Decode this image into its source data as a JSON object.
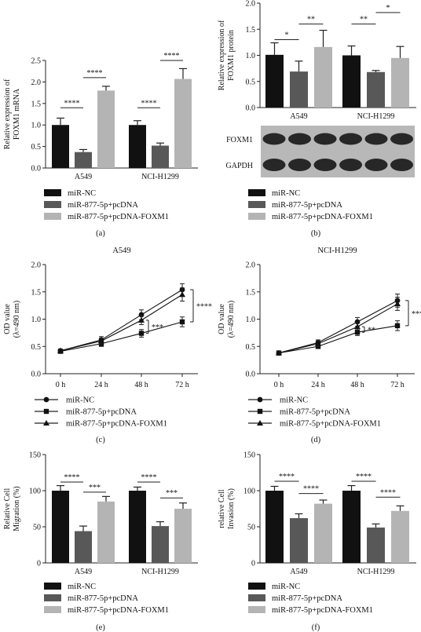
{
  "colors": {
    "nc": "#111111",
    "pc": "#585858",
    "foxm1": "#b4b4b4",
    "axis": "#222222",
    "blot_bg": "#b8b8b8",
    "band": "#1a1a1a"
  },
  "legend": {
    "nc": "miR-NC",
    "pc": "miR-877-5p+pcDNA",
    "foxm1": "miR-877-5p+pcDNA-FOXM1"
  },
  "blot": {
    "labels": [
      "FOXM1",
      "GAPDH"
    ]
  },
  "chart_data": [
    {
      "panel": "a",
      "type": "bar",
      "caption": "(a)",
      "ylabel": "Relative expression of FOXM1 mRNA",
      "ylim": [
        0,
        2.5
      ],
      "yticks": [
        "0.0",
        "0.5",
        "1.0",
        "1.5",
        "2.0",
        "2.5"
      ],
      "categories": [
        "A549",
        "NCI-H1299"
      ],
      "series": [
        {
          "name": "miR-NC",
          "values": [
            1.0,
            1.0
          ],
          "err": [
            0.16,
            0.1
          ]
        },
        {
          "name": "miR-877-5p+pcDNA",
          "values": [
            0.37,
            0.52
          ],
          "err": [
            0.06,
            0.06
          ]
        },
        {
          "name": "miR-877-5p+pcDNA-FOXM1",
          "values": [
            1.8,
            2.07
          ],
          "err": [
            0.1,
            0.24
          ]
        }
      ],
      "sig": [
        {
          "cat": 0,
          "from": 0,
          "to": 1,
          "level": 1.4,
          "label": "****"
        },
        {
          "cat": 0,
          "from": 1,
          "to": 2,
          "level": 2.1,
          "label": "****"
        },
        {
          "cat": 1,
          "from": 0,
          "to": 1,
          "level": 1.4,
          "label": "****"
        },
        {
          "cat": 1,
          "from": 1,
          "to": 2,
          "level": 2.5,
          "label": "****"
        }
      ]
    },
    {
      "panel": "b",
      "type": "bar",
      "caption": "(b)",
      "ylabel": "Relative expression of FOXM1 protein",
      "ylim": [
        0,
        2.0
      ],
      "yticks": [
        "0.0",
        "0.5",
        "1.0",
        "1.5",
        "2.0"
      ],
      "categories": [
        "A549",
        "NCI-H1299"
      ],
      "series": [
        {
          "name": "miR-NC",
          "values": [
            1.01,
            1.0
          ],
          "err": [
            0.23,
            0.18
          ]
        },
        {
          "name": "miR-877-5p+pcDNA",
          "values": [
            0.69,
            0.68
          ],
          "err": [
            0.2,
            0.03
          ]
        },
        {
          "name": "miR-877-5p+pcDNA-FOXM1",
          "values": [
            1.16,
            0.95
          ],
          "err": [
            0.32,
            0.22
          ]
        }
      ],
      "sig": [
        {
          "cat": 0,
          "from": 0,
          "to": 1,
          "level": 1.3,
          "label": "*"
        },
        {
          "cat": 0,
          "from": 1,
          "to": 2,
          "level": 1.6,
          "label": "**"
        },
        {
          "cat": 1,
          "from": 0,
          "to": 1,
          "level": 1.6,
          "label": "**"
        },
        {
          "cat": 1,
          "from": 1,
          "to": 2,
          "level": 1.82,
          "label": "*"
        }
      ]
    },
    {
      "panel": "c",
      "type": "line",
      "caption": "(c)",
      "title": "A549",
      "ylabel": "OD value (λ=490 nm)",
      "ylim": [
        0,
        2.0
      ],
      "yticks": [
        "0.0",
        "0.5",
        "1.0",
        "1.5",
        "2.0"
      ],
      "x": [
        "0 h",
        "24 h",
        "48 h",
        "72 h"
      ],
      "series": [
        {
          "name": "miR-NC",
          "marker": "circle",
          "values": [
            0.42,
            0.62,
            1.08,
            1.54
          ],
          "err": [
            0.03,
            0.06,
            0.09,
            0.11
          ]
        },
        {
          "name": "miR-877-5p+pcDNA",
          "marker": "square",
          "values": [
            0.41,
            0.55,
            0.74,
            0.95
          ],
          "err": [
            0.03,
            0.05,
            0.07,
            0.09
          ]
        },
        {
          "name": "miR-877-5p+pcDNA-FOXM1",
          "marker": "triangle",
          "values": [
            0.42,
            0.6,
            0.98,
            1.45
          ],
          "err": [
            0.03,
            0.05,
            0.08,
            0.12
          ]
        }
      ],
      "sig": [
        {
          "kind": "pts",
          "x": 2,
          "y1": 0.74,
          "y2": 0.98,
          "label": "***"
        },
        {
          "kind": "end",
          "y1": 0.95,
          "y2": 1.54,
          "label": "****"
        }
      ]
    },
    {
      "panel": "d",
      "type": "line",
      "caption": "(d)",
      "title": "NCI-H1299",
      "ylabel": "OD value (λ=490 nm)",
      "ylim": [
        0,
        2.0
      ],
      "yticks": [
        "0.0",
        "0.5",
        "1.0",
        "1.5",
        "2.0"
      ],
      "x": [
        "0 h",
        "24 h",
        "48 h",
        "72 h"
      ],
      "series": [
        {
          "name": "miR-NC",
          "marker": "circle",
          "values": [
            0.38,
            0.57,
            0.95,
            1.34
          ],
          "err": [
            0.02,
            0.05,
            0.08,
            0.12
          ]
        },
        {
          "name": "miR-877-5p+pcDNA",
          "marker": "square",
          "values": [
            0.38,
            0.5,
            0.76,
            0.88
          ],
          "err": [
            0.02,
            0.04,
            0.06,
            0.09
          ]
        },
        {
          "name": "miR-877-5p+pcDNA-FOXM1",
          "marker": "triangle",
          "values": [
            0.38,
            0.55,
            0.86,
            1.28
          ],
          "err": [
            0.02,
            0.05,
            0.07,
            0.12
          ]
        }
      ],
      "sig": [
        {
          "kind": "pts",
          "x": 2,
          "y1": 0.76,
          "y2": 0.86,
          "label": "**"
        },
        {
          "kind": "end",
          "y1": 0.88,
          "y2": 1.34,
          "label": "***"
        }
      ]
    },
    {
      "panel": "e",
      "type": "bar",
      "caption": "(e)",
      "ylabel": "Relative Cell Migration (%)",
      "ylim": [
        0,
        150
      ],
      "yticks": [
        "0",
        "50",
        "100",
        "150"
      ],
      "categories": [
        "A549",
        "NCI-H1299"
      ],
      "series": [
        {
          "name": "miR-NC",
          "values": [
            100,
            100
          ],
          "err": [
            7,
            5
          ]
        },
        {
          "name": "miR-877-5p+pcDNA",
          "values": [
            44,
            51
          ],
          "err": [
            7,
            6
          ]
        },
        {
          "name": "miR-877-5p+pcDNA-FOXM1",
          "values": [
            85,
            75
          ],
          "err": [
            7,
            8
          ]
        }
      ],
      "sig": [
        {
          "cat": 0,
          "from": 0,
          "to": 1,
          "level": 112,
          "label": "****"
        },
        {
          "cat": 0,
          "from": 1,
          "to": 2,
          "level": 98,
          "label": "***"
        },
        {
          "cat": 1,
          "from": 0,
          "to": 1,
          "level": 112,
          "label": "****"
        },
        {
          "cat": 1,
          "from": 1,
          "to": 2,
          "level": 90,
          "label": "***"
        }
      ]
    },
    {
      "panel": "f",
      "type": "bar",
      "caption": "(f)",
      "ylabel": "relative Cell Invasion (%)",
      "ylim": [
        0,
        150
      ],
      "yticks": [
        "0",
        "50",
        "100",
        "150"
      ],
      "categories": [
        "A549",
        "NCI-H1299"
      ],
      "series": [
        {
          "name": "miR-NC",
          "values": [
            100,
            100
          ],
          "err": [
            6,
            7
          ]
        },
        {
          "name": "miR-877-5p+pcDNA",
          "values": [
            62,
            49
          ],
          "err": [
            6,
            5
          ]
        },
        {
          "name": "miR-877-5p+pcDNA-FOXM1",
          "values": [
            82,
            72
          ],
          "err": [
            5,
            7
          ]
        }
      ],
      "sig": [
        {
          "cat": 0,
          "from": 0,
          "to": 1,
          "level": 113,
          "label": "****"
        },
        {
          "cat": 0,
          "from": 1,
          "to": 2,
          "level": 96,
          "label": "****"
        },
        {
          "cat": 1,
          "from": 0,
          "to": 1,
          "level": 113,
          "label": "****"
        },
        {
          "cat": 1,
          "from": 1,
          "to": 2,
          "level": 91,
          "label": "****"
        }
      ]
    }
  ]
}
